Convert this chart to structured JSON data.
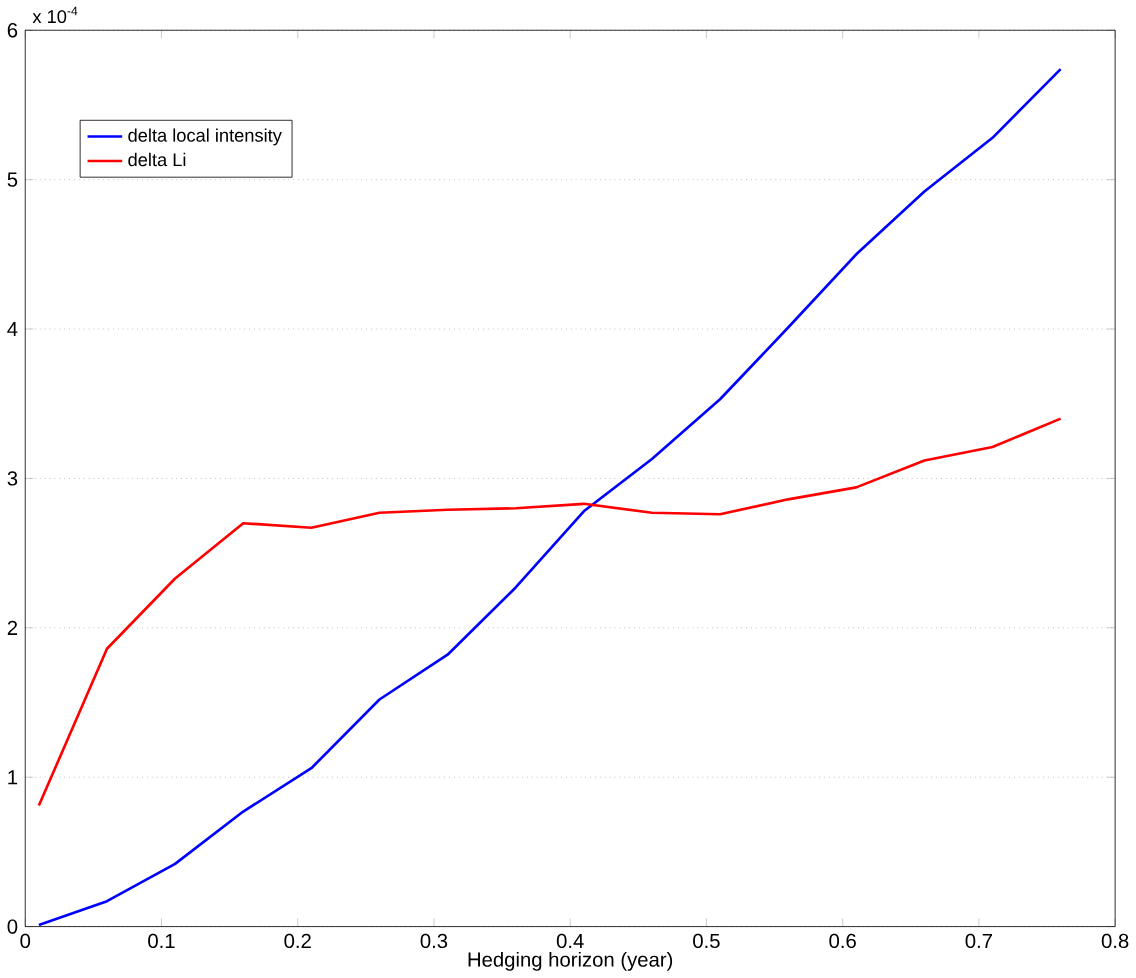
{
  "chart_data": {
    "type": "line",
    "xlabel": "Hedging horizon (year)",
    "annotations": [
      "x 10$^{-4}$"
    ],
    "x": [
      0.01,
      0.06,
      0.11,
      0.16,
      0.21,
      0.26,
      0.31,
      0.36,
      0.41,
      0.46,
      0.51,
      0.56,
      0.61,
      0.66,
      0.71,
      0.76
    ],
    "series": [
      {
        "name": "delta local intensity",
        "color": "#0000ff",
        "values": [
          0.01,
          0.17,
          0.42,
          0.77,
          1.06,
          1.52,
          1.82,
          2.27,
          2.78,
          3.13,
          3.53,
          4.01,
          4.5,
          4.92,
          5.28,
          5.74
        ]
      },
      {
        "name": "delta Li",
        "color": "#ff0000",
        "values": [
          0.81,
          1.86,
          2.33,
          2.7,
          2.67,
          2.77,
          2.79,
          2.8,
          2.83,
          2.77,
          2.76,
          2.86,
          2.94,
          3.12,
          3.21,
          3.4
        ]
      }
    ],
    "xlim": [
      0,
      0.8
    ],
    "ylim": [
      0,
      6
    ],
    "xticks": [
      0,
      0.1,
      0.2,
      0.3,
      0.4,
      0.5,
      0.6,
      0.7,
      0.8
    ],
    "yticks": [
      0,
      1,
      2,
      3,
      4,
      5,
      6
    ],
    "grid": "y",
    "legend": "top left",
    "marker": "none",
    "line_style": "solid"
  }
}
